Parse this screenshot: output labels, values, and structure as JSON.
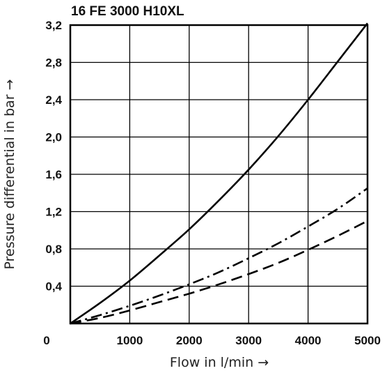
{
  "chart_data": {
    "type": "line",
    "title": "16 FE 3000 H10XL",
    "xlabel": "Flow in l/min →",
    "ylabel": "Pressure differential in bar →",
    "xlim": [
      0,
      5000
    ],
    "ylim": [
      0,
      3.2
    ],
    "x_ticks": [
      "0",
      "1000",
      "2000",
      "3000",
      "4000",
      "5000"
    ],
    "y_ticks": [
      "0,4",
      "0,8",
      "1,2",
      "1,6",
      "2,0",
      "2,4",
      "2,8",
      "3,2"
    ],
    "grid": true,
    "series": [
      {
        "style": "solid",
        "x": [
          0,
          500,
          1000,
          1500,
          2000,
          2500,
          3000,
          3500,
          4000,
          4500,
          5000
        ],
        "y": [
          0,
          0.22,
          0.46,
          0.73,
          1.01,
          1.32,
          1.65,
          2.01,
          2.4,
          2.81,
          3.22
        ]
      },
      {
        "style": "dash-dot",
        "x": [
          0,
          500,
          1000,
          1500,
          2000,
          2500,
          3000,
          3500,
          4000,
          4500,
          5000
        ],
        "y": [
          0,
          0.09,
          0.19,
          0.3,
          0.42,
          0.55,
          0.7,
          0.86,
          1.04,
          1.23,
          1.45
        ]
      },
      {
        "style": "dashed",
        "x": [
          0,
          500,
          1000,
          1500,
          2000,
          2500,
          3000,
          3500,
          4000,
          4500,
          5000
        ],
        "y": [
          0,
          0.06,
          0.14,
          0.23,
          0.32,
          0.42,
          0.53,
          0.65,
          0.79,
          0.94,
          1.1
        ]
      }
    ]
  }
}
